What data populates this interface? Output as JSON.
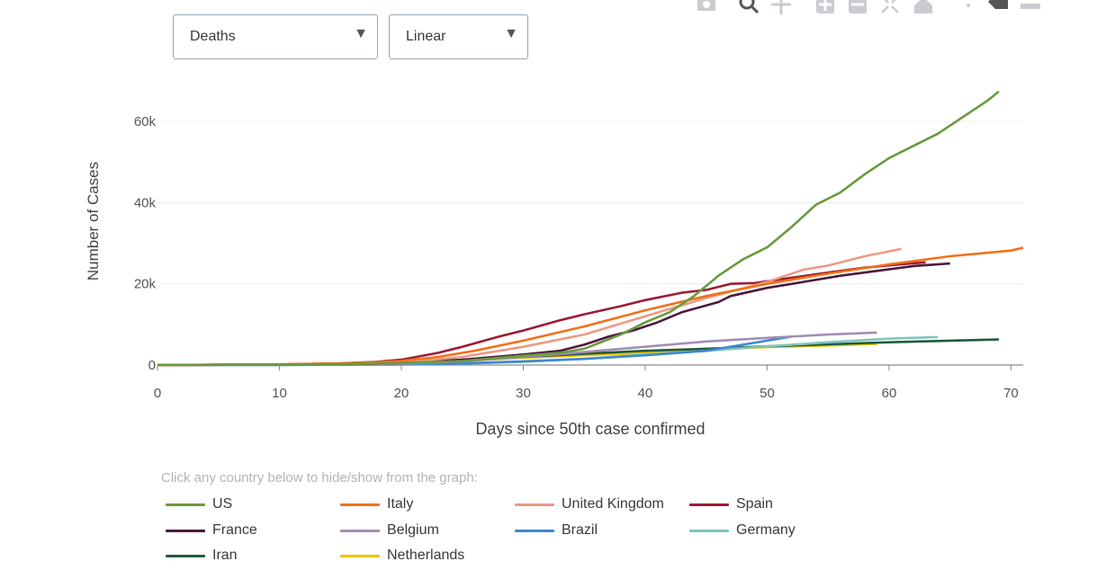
{
  "controls": {
    "metric_select": "Deaths",
    "scale_select": "Linear"
  },
  "modebar": {
    "icons": [
      "camera-icon",
      "zoom-icon",
      "pan-icon",
      "zoom-in-icon",
      "zoom-out-icon",
      "autoscale-icon",
      "home-icon",
      "more-icon",
      "compare-icon",
      "spike-lines-icon"
    ]
  },
  "legend": {
    "title": "Click any country below to hide/show from the graph:"
  },
  "chart_data": {
    "type": "line",
    "xlabel": "Days since 50th case confirmed",
    "ylabel": "Number of Cases",
    "xlim": [
      0,
      71
    ],
    "ylim": [
      0,
      70000
    ],
    "xticks": [
      0,
      10,
      20,
      30,
      40,
      50,
      60,
      70
    ],
    "xtick_labels": [
      "0",
      "10",
      "20",
      "30",
      "40",
      "50",
      "60",
      "70"
    ],
    "yticks": [
      0,
      20000,
      40000,
      60000
    ],
    "ytick_labels": [
      "0",
      "20k",
      "40k",
      "60k"
    ],
    "grid": "horizontal",
    "series": [
      {
        "name": "US",
        "color": "#6a9a3e",
        "x": [
          0,
          10,
          15,
          20,
          25,
          30,
          33,
          35,
          38,
          40,
          42,
          44,
          46,
          48,
          50,
          52,
          54,
          56,
          58,
          60,
          62,
          64,
          66,
          68,
          69
        ],
        "y": [
          0,
          100,
          200,
          500,
          1000,
          2300,
          3000,
          4000,
          7500,
          10500,
          13000,
          17000,
          22000,
          26000,
          29000,
          34000,
          39500,
          42500,
          47000,
          51000,
          54000,
          57000,
          61000,
          65000,
          67400
        ]
      },
      {
        "name": "Italy",
        "color": "#f07218",
        "x": [
          0,
          10,
          15,
          18,
          20,
          23,
          26,
          30,
          35,
          40,
          45,
          50,
          55,
          60,
          65,
          70,
          71
        ],
        "y": [
          0,
          150,
          400,
          700,
          1000,
          2000,
          3500,
          6000,
          9500,
          13500,
          17000,
          20000,
          22500,
          24800,
          26800,
          28200,
          28900
        ]
      },
      {
        "name": "United Kingdom",
        "color": "#ec9a86",
        "x": [
          0,
          10,
          15,
          20,
          25,
          30,
          35,
          40,
          45,
          50,
          53,
          55,
          58,
          61
        ],
        "y": [
          0,
          100,
          200,
          600,
          2000,
          4500,
          7500,
          12000,
          16500,
          20500,
          23500,
          24500,
          26800,
          28600
        ]
      },
      {
        "name": "Spain",
        "color": "#9e1c35",
        "x": [
          0,
          10,
          15,
          18,
          20,
          23,
          25,
          28,
          30,
          33,
          35,
          38,
          40,
          43,
          45,
          47,
          49,
          52,
          55,
          58,
          61,
          63
        ],
        "y": [
          0,
          150,
          400,
          800,
          1300,
          3000,
          4500,
          7000,
          8500,
          11000,
          12500,
          14500,
          16000,
          17800,
          18500,
          20000,
          20200,
          21500,
          22800,
          24000,
          24800,
          25300
        ]
      },
      {
        "name": "France",
        "color": "#4c1b3e",
        "x": [
          0,
          10,
          15,
          20,
          25,
          30,
          33,
          35,
          37,
          39,
          41,
          43,
          46,
          47,
          50,
          53,
          56,
          59,
          62,
          65
        ],
        "y": [
          0,
          100,
          200,
          500,
          1300,
          2600,
          3500,
          5000,
          7000,
          8500,
          10500,
          13000,
          15500,
          17000,
          19000,
          20500,
          22000,
          23200,
          24400,
          25000
        ]
      },
      {
        "name": "Belgium",
        "color": "#a08fb5",
        "x": [
          0,
          10,
          20,
          25,
          30,
          35,
          40,
          45,
          50,
          55,
          59
        ],
        "y": [
          0,
          50,
          300,
          900,
          2000,
          3200,
          4500,
          5800,
          6700,
          7500,
          8000
        ]
      },
      {
        "name": "Brazil",
        "color": "#3e88d2",
        "x": [
          0,
          10,
          20,
          25,
          30,
          35,
          40,
          45,
          48,
          50,
          52
        ],
        "y": [
          0,
          30,
          150,
          400,
          900,
          1500,
          2400,
          3500,
          5000,
          6000,
          7000
        ]
      },
      {
        "name": "Germany",
        "color": "#7ec6bd",
        "x": [
          0,
          10,
          20,
          25,
          30,
          35,
          40,
          45,
          50,
          55,
          60,
          64
        ],
        "y": [
          0,
          30,
          150,
          350,
          800,
          1500,
          2600,
          3500,
          4600,
          5600,
          6500,
          6900
        ]
      },
      {
        "name": "Iran",
        "color": "#215a3c",
        "x": [
          0,
          10,
          20,
          25,
          30,
          35,
          40,
          45,
          50,
          55,
          60,
          65,
          69
        ],
        "y": [
          0,
          100,
          500,
          1300,
          2000,
          2800,
          3500,
          4000,
          4600,
          5100,
          5600,
          6000,
          6300
        ]
      },
      {
        "name": "Netherlands",
        "color": "#ecc400",
        "x": [
          0,
          10,
          20,
          25,
          30,
          35,
          40,
          45,
          50,
          55,
          59
        ],
        "y": [
          0,
          50,
          400,
          1000,
          1800,
          2400,
          3000,
          3800,
          4400,
          4800,
          5200
        ]
      }
    ]
  }
}
